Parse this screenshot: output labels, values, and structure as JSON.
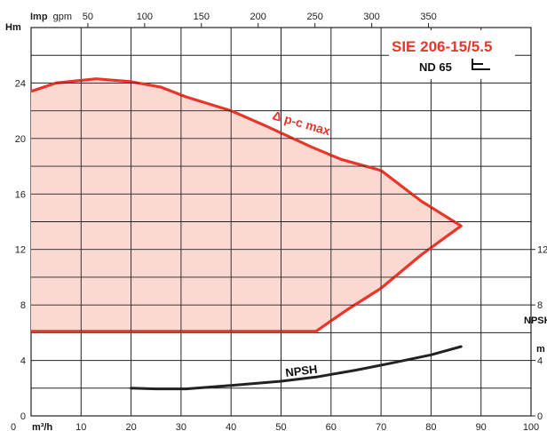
{
  "chart_data": {
    "type": "line",
    "title": "SIE 206-15/5.5",
    "subtitle": "ND 65",
    "colors": {
      "envelope": "#e8372a",
      "envelope_fill": "#fbd9d2",
      "npsh": "#222222",
      "title": "#e8372a"
    },
    "x_axis": {
      "label": "m³/h",
      "unit_prefix": "0",
      "range": [
        0,
        100
      ],
      "ticks": [
        10,
        20,
        30,
        40,
        50,
        60,
        70,
        80,
        90,
        100
      ]
    },
    "x2_axis": {
      "label": "Imp gpm",
      "label_bold": "Imp",
      "label_normal": "gpm",
      "ticks": [
        50,
        100,
        150,
        200,
        250,
        300,
        350
      ]
    },
    "y_axis": {
      "label": "Hm",
      "range": [
        0,
        28
      ],
      "ticks": [
        0,
        4,
        8,
        12,
        16,
        20,
        24
      ]
    },
    "y2_axis": {
      "label": "NPSH",
      "unit": "m",
      "ticks": [
        0,
        4,
        8,
        12
      ]
    },
    "series": [
      {
        "name": "Δ p-c max",
        "kind": "envelope",
        "points": [
          [
            0,
            23.4
          ],
          [
            5,
            24.0
          ],
          [
            13,
            24.3
          ],
          [
            20,
            24.1
          ],
          [
            26,
            23.7
          ],
          [
            31,
            23.0
          ],
          [
            40,
            22.0
          ],
          [
            47,
            20.9
          ],
          [
            56,
            19.4
          ],
          [
            62,
            18.5
          ],
          [
            70,
            17.7
          ],
          [
            78,
            15.5
          ],
          [
            86,
            13.7
          ],
          [
            78,
            11.6
          ],
          [
            70,
            9.2
          ],
          [
            63,
            7.6
          ],
          [
            57,
            6.1
          ],
          [
            44,
            6.1
          ],
          [
            30,
            6.1
          ],
          [
            0,
            6.1
          ]
        ]
      },
      {
        "name": "NPSH",
        "kind": "line",
        "points": [
          [
            20,
            2.0
          ],
          [
            25,
            1.95
          ],
          [
            31,
            1.95
          ],
          [
            40,
            2.2
          ],
          [
            50,
            2.5
          ],
          [
            57,
            2.8
          ],
          [
            65,
            3.3
          ],
          [
            72,
            3.8
          ],
          [
            80,
            4.4
          ],
          [
            86,
            5.0
          ]
        ]
      }
    ]
  }
}
